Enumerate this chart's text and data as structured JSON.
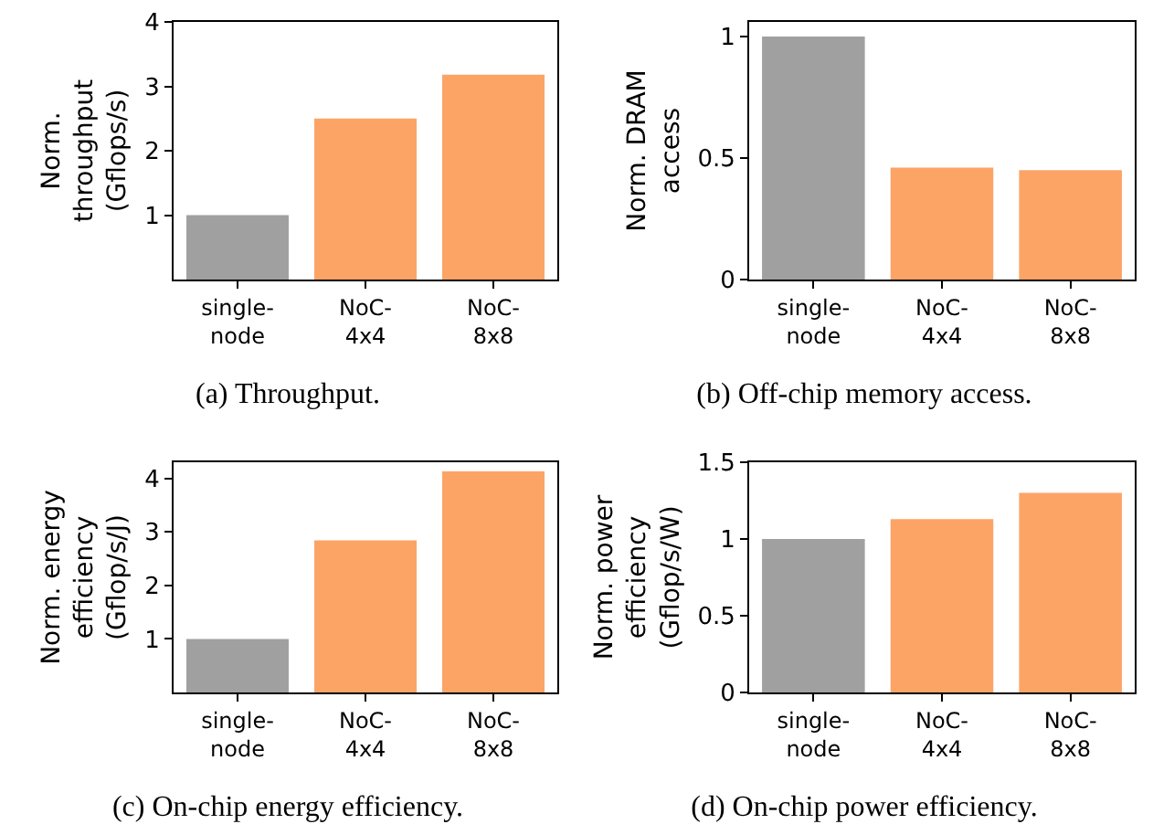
{
  "chart_data": [
    {
      "type": "bar",
      "title": "(a) Throughput.",
      "ylabel": "Norm.\nthroughput\n(Gflops/s)",
      "categories": [
        "single-node",
        "NoC-4x4",
        "NoC-8x8"
      ],
      "values": [
        1,
        2.5,
        3.18
      ],
      "colors": [
        "#a0a0a0",
        "#fca466",
        "#fca466"
      ],
      "ylim": [
        0,
        4
      ],
      "yticks": [
        1,
        2,
        3,
        4
      ],
      "grid": false
    },
    {
      "type": "bar",
      "title": "(b) Off-chip memory access.",
      "ylabel": "Norm. DRAM\naccess",
      "categories": [
        "single-node",
        "NoC-4x4",
        "NoC-8x8"
      ],
      "values": [
        1,
        0.46,
        0.45
      ],
      "colors": [
        "#a0a0a0",
        "#fca466",
        "#fca466"
      ],
      "ylim": [
        0,
        1.06
      ],
      "yticks": [
        0,
        0.5,
        1
      ],
      "grid": false
    },
    {
      "type": "bar",
      "title": "(c) On-chip energy efficiency.",
      "ylabel": "Norm. energy\nefficiency\n(Gflop/s/J)",
      "categories": [
        "single-node",
        "NoC-4x4",
        "NoC-8x8"
      ],
      "values": [
        1,
        2.84,
        4.13
      ],
      "colors": [
        "#a0a0a0",
        "#fca466",
        "#fca466"
      ],
      "ylim": [
        0,
        4.3
      ],
      "yticks": [
        1,
        2,
        3,
        4
      ],
      "grid": false
    },
    {
      "type": "bar",
      "title": "(d) On-chip power efficiency.",
      "ylabel": "Norm. power\nefficiency\n(Gflop/s/W)",
      "categories": [
        "single-node",
        "NoC-4x4",
        "NoC-8x8"
      ],
      "values": [
        1,
        1.13,
        1.3
      ],
      "colors": [
        "#a0a0a0",
        "#fca466",
        "#fca466"
      ],
      "ylim": [
        0,
        1.5
      ],
      "yticks": [
        0,
        0.5,
        1,
        1.5
      ],
      "grid": false
    }
  ]
}
